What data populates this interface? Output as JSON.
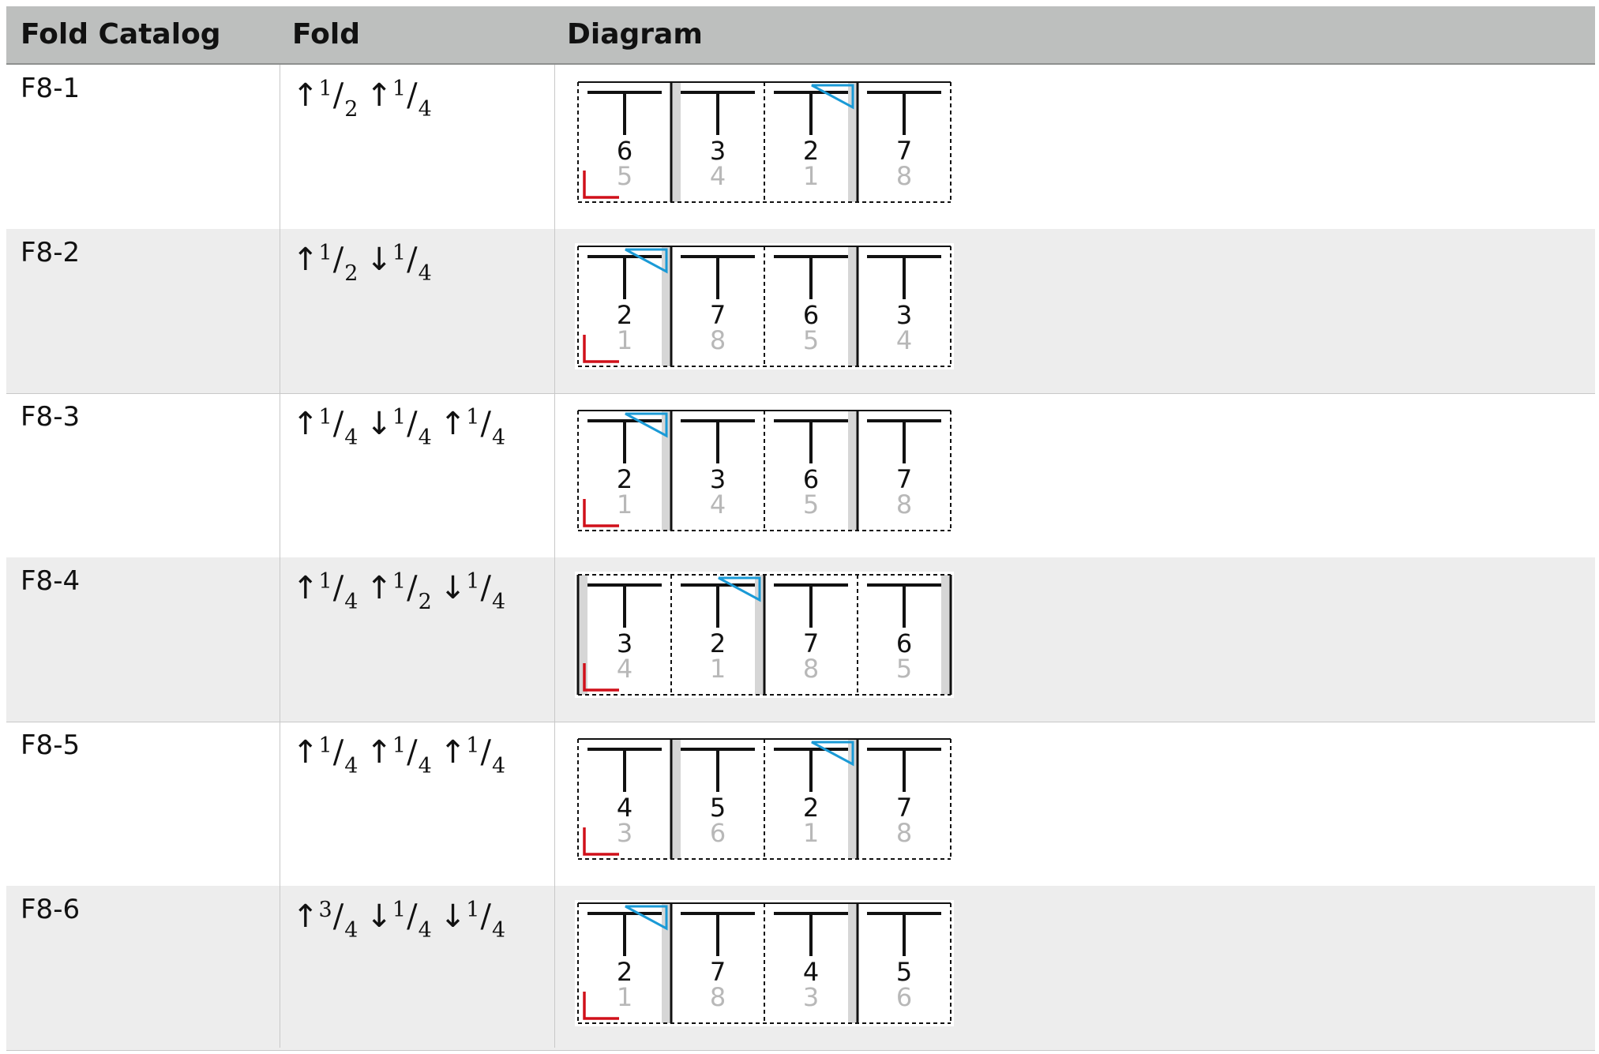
{
  "header": {
    "col1": "Fold Catalog",
    "col2": "Fold",
    "col3": "Diagram"
  },
  "rows": [
    {
      "id": "F8-1",
      "folds": [
        {
          "dir": "up",
          "num": "1",
          "den": "2"
        },
        {
          "dir": "up",
          "num": "1",
          "den": "4"
        }
      ],
      "panels": [
        {
          "front": "6",
          "back": "5"
        },
        {
          "front": "3",
          "back": "4"
        },
        {
          "front": "2",
          "back": "1"
        },
        {
          "front": "7",
          "back": "8"
        }
      ],
      "triangle_panel": 3,
      "corner_marker": true,
      "outer_solid": false,
      "shaded": [
        {
          "boundary": 1,
          "side": "right"
        },
        {
          "boundary": 3,
          "side": "left"
        }
      ],
      "solid_boundaries": [
        1,
        3
      ],
      "dashed_boundaries": [
        2
      ]
    },
    {
      "id": "F8-2",
      "folds": [
        {
          "dir": "up",
          "num": "1",
          "den": "2"
        },
        {
          "dir": "down",
          "num": "1",
          "den": "4"
        }
      ],
      "panels": [
        {
          "front": "2",
          "back": "1"
        },
        {
          "front": "7",
          "back": "8"
        },
        {
          "front": "6",
          "back": "5"
        },
        {
          "front": "3",
          "back": "4"
        }
      ],
      "triangle_panel": 1,
      "corner_marker": true,
      "outer_solid": false,
      "shaded": [
        {
          "boundary": 1,
          "side": "left"
        },
        {
          "boundary": 3,
          "side": "left"
        }
      ],
      "solid_boundaries": [
        1,
        3
      ],
      "dashed_boundaries": [
        2
      ]
    },
    {
      "id": "F8-3",
      "folds": [
        {
          "dir": "up",
          "num": "1",
          "den": "4"
        },
        {
          "dir": "down",
          "num": "1",
          "den": "4"
        },
        {
          "dir": "up",
          "num": "1",
          "den": "4"
        }
      ],
      "panels": [
        {
          "front": "2",
          "back": "1"
        },
        {
          "front": "3",
          "back": "4"
        },
        {
          "front": "6",
          "back": "5"
        },
        {
          "front": "7",
          "back": "8"
        }
      ],
      "triangle_panel": 1,
      "corner_marker": true,
      "outer_solid": false,
      "shaded": [
        {
          "boundary": 1,
          "side": "left"
        },
        {
          "boundary": 3,
          "side": "left"
        }
      ],
      "solid_boundaries": [
        1,
        3
      ],
      "dashed_boundaries": [
        2
      ]
    },
    {
      "id": "F8-4",
      "folds": [
        {
          "dir": "up",
          "num": "1",
          "den": "4"
        },
        {
          "dir": "up",
          "num": "1",
          "den": "2"
        },
        {
          "dir": "down",
          "num": "1",
          "den": "4"
        }
      ],
      "panels": [
        {
          "front": "3",
          "back": "4"
        },
        {
          "front": "2",
          "back": "1"
        },
        {
          "front": "7",
          "back": "8"
        },
        {
          "front": "6",
          "back": "5"
        }
      ],
      "triangle_panel": 2,
      "corner_marker": true,
      "outer_solid": true,
      "shaded": [
        {
          "boundary": 0,
          "side": "right"
        },
        {
          "boundary": 2,
          "side": "left"
        },
        {
          "boundary": 4,
          "side": "left"
        }
      ],
      "solid_boundaries": [
        2
      ],
      "dashed_boundaries": [
        1,
        3
      ]
    },
    {
      "id": "F8-5",
      "folds": [
        {
          "dir": "up",
          "num": "1",
          "den": "4"
        },
        {
          "dir": "up",
          "num": "1",
          "den": "4"
        },
        {
          "dir": "up",
          "num": "1",
          "den": "4"
        }
      ],
      "panels": [
        {
          "front": "4",
          "back": "3"
        },
        {
          "front": "5",
          "back": "6"
        },
        {
          "front": "2",
          "back": "1"
        },
        {
          "front": "7",
          "back": "8"
        }
      ],
      "triangle_panel": 3,
      "corner_marker": true,
      "outer_solid": false,
      "shaded": [
        {
          "boundary": 1,
          "side": "right"
        },
        {
          "boundary": 3,
          "side": "left"
        }
      ],
      "solid_boundaries": [
        1,
        3
      ],
      "dashed_boundaries": [
        2
      ]
    },
    {
      "id": "F8-6",
      "folds": [
        {
          "dir": "up",
          "num": "3",
          "den": "4"
        },
        {
          "dir": "down",
          "num": "1",
          "den": "4"
        },
        {
          "dir": "down",
          "num": "1",
          "den": "4"
        }
      ],
      "panels": [
        {
          "front": "2",
          "back": "1"
        },
        {
          "front": "7",
          "back": "8"
        },
        {
          "front": "4",
          "back": "3"
        },
        {
          "front": "5",
          "back": "6"
        }
      ],
      "triangle_panel": 1,
      "corner_marker": true,
      "outer_solid": false,
      "shaded": [
        {
          "boundary": 1,
          "side": "left"
        },
        {
          "boundary": 3,
          "side": "left"
        }
      ],
      "solid_boundaries": [
        1,
        3
      ],
      "dashed_boundaries": [
        2
      ]
    }
  ],
  "colors": {
    "triangle": "#1a9ad6",
    "corner": "#d0101a",
    "back_number": "#b8b8b8",
    "shade": "#d6d6d6"
  }
}
